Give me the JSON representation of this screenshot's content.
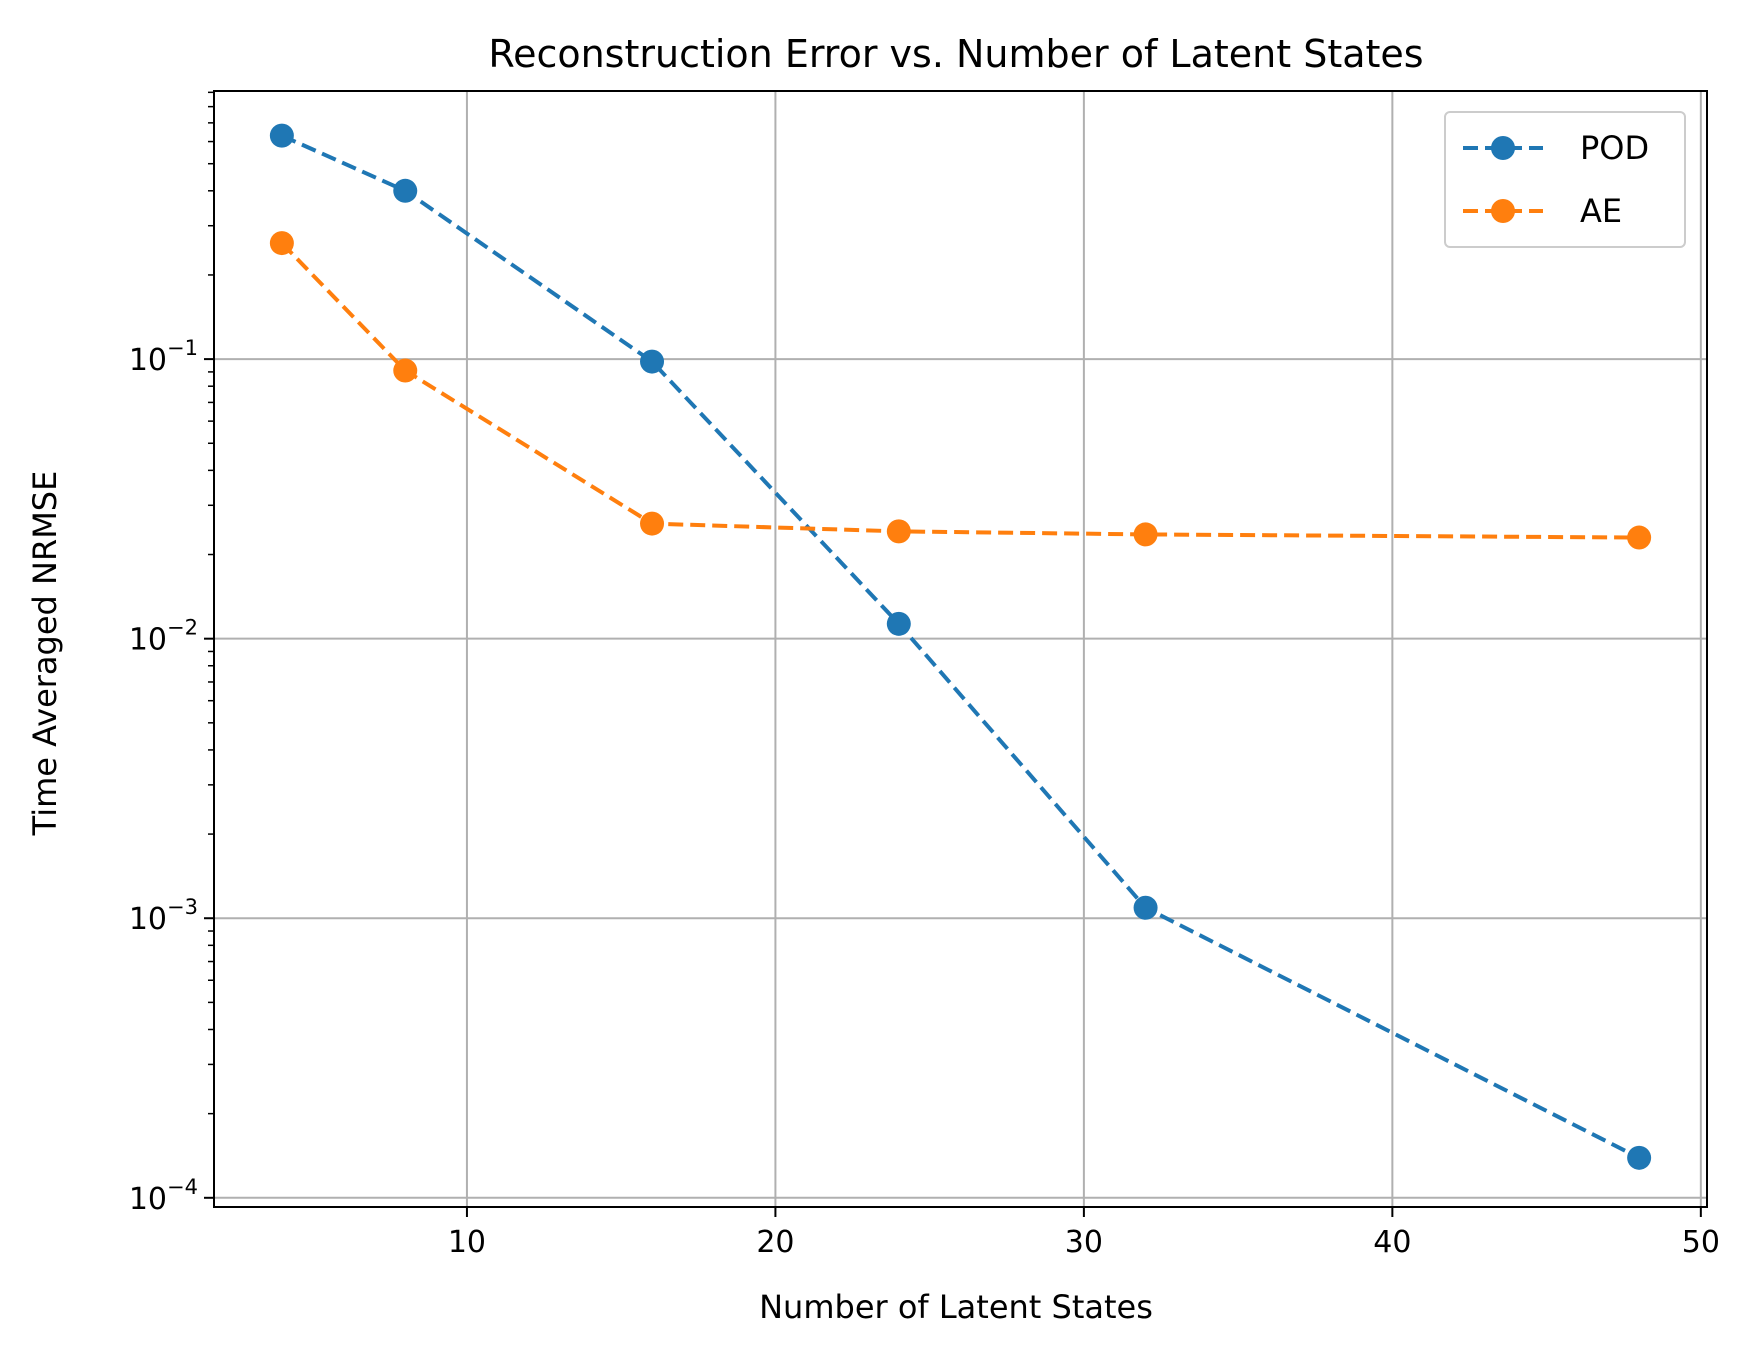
{
  "chart_data": {
    "type": "line",
    "title": "Reconstruction Error vs. Number of Latent States",
    "xlabel": "Number of Latent States",
    "ylabel": "Time Averaged NRMSE",
    "xlim": [
      1.8,
      50.2
    ],
    "ylim": [
      9.27e-05,
      0.91
    ],
    "yscale": "log",
    "grid": true,
    "legend_position": "upper right",
    "x_ticks": [
      10,
      20,
      30,
      40,
      50
    ],
    "x_tick_labels": [
      "10",
      "20",
      "30",
      "40",
      "50"
    ],
    "y_ticks": [
      0.0001,
      0.001,
      0.01,
      0.1
    ],
    "y_tick_labels": [
      {
        "base": "10",
        "exp": "−4"
      },
      {
        "base": "10",
        "exp": "−3"
      },
      {
        "base": "10",
        "exp": "−2"
      },
      {
        "base": "10",
        "exp": "−1"
      }
    ],
    "x": [
      4,
      8,
      16,
      24,
      32,
      48
    ],
    "series": [
      {
        "name": "POD",
        "color": "#1f77b4",
        "linestyle": "dashed",
        "marker": "circle",
        "values": [
          0.63,
          0.4,
          0.098,
          0.0113,
          0.00109,
          0.000139
        ]
      },
      {
        "name": "AE",
        "color": "#ff7f0e",
        "linestyle": "dashed",
        "marker": "circle",
        "values": [
          0.26,
          0.091,
          0.0258,
          0.0242,
          0.0236,
          0.023
        ]
      }
    ]
  }
}
